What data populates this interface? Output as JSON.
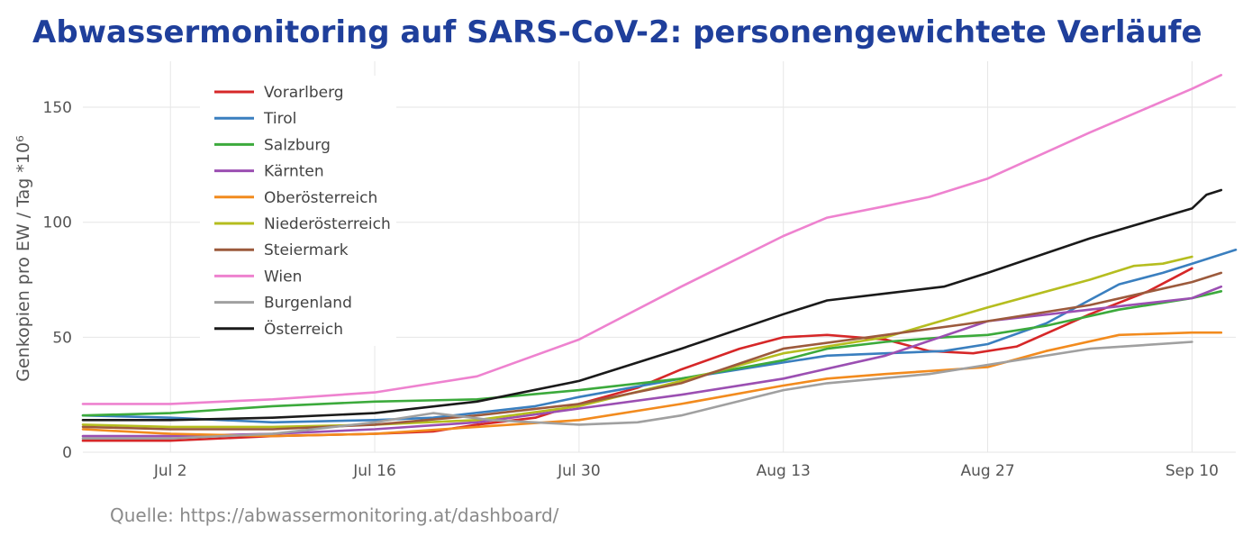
{
  "title": "Abwassermonitoring auf SARS-CoV-2: personengewichtete Verläufe",
  "source": "Quelle: https://abwassermonitoring.at/dashboard/",
  "chart_data": {
    "type": "line",
    "ylabel": "Genkopien pro EW / Tag *10⁶",
    "xlabel": "",
    "ylim": [
      0,
      170
    ],
    "yticks": [
      0,
      50,
      100,
      150
    ],
    "xticks": [
      "Jul 2",
      "Jul 16",
      "Jul 30",
      "Aug 13",
      "Aug 27",
      "Sep 10"
    ],
    "xrange": [
      "2022-06-26",
      "2022-09-13"
    ],
    "grid": true,
    "legend_position": "top-left",
    "series": [
      {
        "name": "Vorarlberg",
        "color": "#d62728",
        "points": [
          [
            "2022-06-26",
            5
          ],
          [
            "2022-07-02",
            5
          ],
          [
            "2022-07-09",
            7
          ],
          [
            "2022-07-16",
            8
          ],
          [
            "2022-07-20",
            9
          ],
          [
            "2022-07-23",
            12
          ],
          [
            "2022-07-27",
            15
          ],
          [
            "2022-07-30",
            21
          ],
          [
            "2022-08-03",
            28
          ],
          [
            "2022-08-06",
            36
          ],
          [
            "2022-08-10",
            45
          ],
          [
            "2022-08-13",
            50
          ],
          [
            "2022-08-16",
            51
          ],
          [
            "2022-08-20",
            49
          ],
          [
            "2022-08-23",
            44
          ],
          [
            "2022-08-26",
            43
          ],
          [
            "2022-08-29",
            46
          ],
          [
            "2022-09-03",
            60
          ],
          [
            "2022-09-07",
            70
          ],
          [
            "2022-09-10",
            80
          ]
        ]
      },
      {
        "name": "Tirol",
        "color": "#3a7fbf",
        "points": [
          [
            "2022-06-26",
            16
          ],
          [
            "2022-07-02",
            15
          ],
          [
            "2022-07-09",
            13
          ],
          [
            "2022-07-16",
            14
          ],
          [
            "2022-07-20",
            15
          ],
          [
            "2022-07-27",
            20
          ],
          [
            "2022-07-30",
            24
          ],
          [
            "2022-08-06",
            32
          ],
          [
            "2022-08-13",
            39
          ],
          [
            "2022-08-16",
            42
          ],
          [
            "2022-08-20",
            43
          ],
          [
            "2022-08-24",
            44
          ],
          [
            "2022-08-27",
            47
          ],
          [
            "2022-08-31",
            56
          ],
          [
            "2022-09-05",
            73
          ],
          [
            "2022-09-08",
            78
          ],
          [
            "2022-09-10",
            82
          ],
          [
            "2022-09-13",
            88
          ]
        ]
      },
      {
        "name": "Salzburg",
        "color": "#3caa3c",
        "points": [
          [
            "2022-06-26",
            16
          ],
          [
            "2022-07-02",
            17
          ],
          [
            "2022-07-09",
            20
          ],
          [
            "2022-07-16",
            22
          ],
          [
            "2022-07-23",
            23
          ],
          [
            "2022-07-30",
            27
          ],
          [
            "2022-08-06",
            32
          ],
          [
            "2022-08-13",
            40
          ],
          [
            "2022-08-16",
            45
          ],
          [
            "2022-08-20",
            48
          ],
          [
            "2022-08-24",
            50
          ],
          [
            "2022-08-27",
            51
          ],
          [
            "2022-08-31",
            55
          ],
          [
            "2022-09-05",
            62
          ],
          [
            "2022-09-10",
            67
          ],
          [
            "2022-09-12",
            70
          ]
        ]
      },
      {
        "name": "Kärnten",
        "color": "#9b4fb2",
        "points": [
          [
            "2022-06-26",
            7
          ],
          [
            "2022-07-02",
            7
          ],
          [
            "2022-07-09",
            8
          ],
          [
            "2022-07-16",
            10
          ],
          [
            "2022-07-23",
            13
          ],
          [
            "2022-07-30",
            19
          ],
          [
            "2022-08-06",
            25
          ],
          [
            "2022-08-13",
            32
          ],
          [
            "2022-08-20",
            42
          ],
          [
            "2022-08-27",
            57
          ],
          [
            "2022-09-03",
            62
          ],
          [
            "2022-09-10",
            67
          ],
          [
            "2022-09-12",
            72
          ]
        ]
      },
      {
        "name": "Oberösterreich",
        "color": "#f28b1e",
        "points": [
          [
            "2022-06-26",
            10
          ],
          [
            "2022-07-02",
            8
          ],
          [
            "2022-07-09",
            7
          ],
          [
            "2022-07-16",
            8
          ],
          [
            "2022-07-23",
            11
          ],
          [
            "2022-07-30",
            14
          ],
          [
            "2022-08-06",
            21
          ],
          [
            "2022-08-13",
            29
          ],
          [
            "2022-08-16",
            32
          ],
          [
            "2022-08-20",
            34
          ],
          [
            "2022-08-27",
            37
          ],
          [
            "2022-08-31",
            44
          ],
          [
            "2022-09-05",
            51
          ],
          [
            "2022-09-10",
            52
          ],
          [
            "2022-09-12",
            52
          ]
        ]
      },
      {
        "name": "Niederösterreich",
        "color": "#b5bd1f",
        "points": [
          [
            "2022-06-26",
            12
          ],
          [
            "2022-07-02",
            11
          ],
          [
            "2022-07-09",
            11
          ],
          [
            "2022-07-16",
            12
          ],
          [
            "2022-07-23",
            14
          ],
          [
            "2022-07-30",
            20
          ],
          [
            "2022-08-06",
            31
          ],
          [
            "2022-08-13",
            43
          ],
          [
            "2022-08-20",
            50
          ],
          [
            "2022-08-27",
            63
          ],
          [
            "2022-09-03",
            75
          ],
          [
            "2022-09-06",
            81
          ],
          [
            "2022-09-08",
            82
          ],
          [
            "2022-09-10",
            85
          ]
        ]
      },
      {
        "name": "Steiermark",
        "color": "#9c5a3c",
        "points": [
          [
            "2022-06-26",
            11
          ],
          [
            "2022-07-02",
            10
          ],
          [
            "2022-07-09",
            10
          ],
          [
            "2022-07-16",
            12
          ],
          [
            "2022-07-23",
            16
          ],
          [
            "2022-07-30",
            21
          ],
          [
            "2022-08-06",
            30
          ],
          [
            "2022-08-13",
            45
          ],
          [
            "2022-08-20",
            51
          ],
          [
            "2022-08-27",
            57
          ],
          [
            "2022-09-03",
            64
          ],
          [
            "2022-09-10",
            74
          ],
          [
            "2022-09-12",
            78
          ]
        ]
      },
      {
        "name": "Wien",
        "color": "#ee82cf",
        "points": [
          [
            "2022-06-26",
            21
          ],
          [
            "2022-07-02",
            21
          ],
          [
            "2022-07-09",
            23
          ],
          [
            "2022-07-16",
            26
          ],
          [
            "2022-07-23",
            33
          ],
          [
            "2022-07-30",
            49
          ],
          [
            "2022-08-06",
            72
          ],
          [
            "2022-08-13",
            94
          ],
          [
            "2022-08-16",
            102
          ],
          [
            "2022-08-20",
            107
          ],
          [
            "2022-08-23",
            111
          ],
          [
            "2022-08-27",
            119
          ],
          [
            "2022-09-03",
            139
          ],
          [
            "2022-09-10",
            158
          ],
          [
            "2022-09-12",
            164
          ]
        ]
      },
      {
        "name": "Burgenland",
        "color": "#a0a0a0",
        "points": [
          [
            "2022-06-26",
            6
          ],
          [
            "2022-07-02",
            6
          ],
          [
            "2022-07-09",
            8
          ],
          [
            "2022-07-16",
            13
          ],
          [
            "2022-07-20",
            17
          ],
          [
            "2022-07-24",
            14
          ],
          [
            "2022-07-30",
            12
          ],
          [
            "2022-08-03",
            13
          ],
          [
            "2022-08-06",
            16
          ],
          [
            "2022-08-13",
            27
          ],
          [
            "2022-08-16",
            30
          ],
          [
            "2022-08-23",
            34
          ],
          [
            "2022-08-27",
            38
          ],
          [
            "2022-09-03",
            45
          ],
          [
            "2022-09-10",
            48
          ]
        ]
      },
      {
        "name": "Österreich",
        "color": "#1a1a1a",
        "points": [
          [
            "2022-06-26",
            14
          ],
          [
            "2022-07-02",
            14
          ],
          [
            "2022-07-09",
            15
          ],
          [
            "2022-07-16",
            17
          ],
          [
            "2022-07-23",
            22
          ],
          [
            "2022-07-30",
            31
          ],
          [
            "2022-08-06",
            45
          ],
          [
            "2022-08-13",
            60
          ],
          [
            "2022-08-16",
            66
          ],
          [
            "2022-08-20",
            69
          ],
          [
            "2022-08-24",
            72
          ],
          [
            "2022-08-27",
            78
          ],
          [
            "2022-09-03",
            93
          ],
          [
            "2022-09-10",
            106
          ],
          [
            "2022-09-11",
            112
          ],
          [
            "2022-09-12",
            114
          ]
        ]
      }
    ]
  }
}
